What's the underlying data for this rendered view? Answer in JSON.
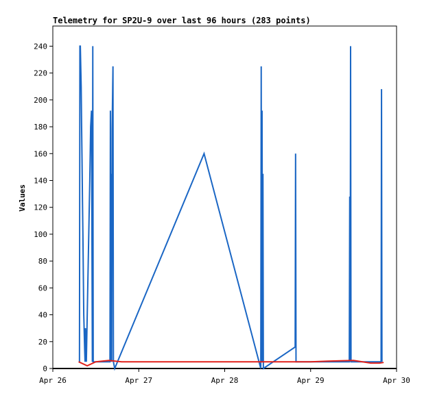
{
  "chart_data": {
    "type": "line",
    "title": "Telemetry for SP2U-9 over last 96 hours (283 points)",
    "y_label": "Values",
    "xlim": [
      26,
      30
    ],
    "xticks": [
      {
        "value": 26,
        "label": "Apr 26"
      },
      {
        "value": 27,
        "label": "Apr 27"
      },
      {
        "value": 28,
        "label": "Apr 28"
      },
      {
        "value": 29,
        "label": "Apr 29"
      },
      {
        "value": 30,
        "label": "Apr 30"
      }
    ],
    "ylim": [
      0,
      255
    ],
    "yticks": [
      0,
      20,
      40,
      60,
      80,
      100,
      120,
      140,
      160,
      180,
      200,
      220,
      240
    ],
    "series": [
      {
        "color": "#1a66c4",
        "x": [
          26.31,
          26.315,
          26.32,
          26.33,
          26.335,
          26.34,
          26.345,
          26.35,
          26.355,
          26.36,
          26.37,
          26.375,
          26.38,
          26.39,
          26.43,
          26.44,
          26.45,
          26.46,
          26.465,
          26.47,
          26.665,
          26.67,
          26.675,
          26.68,
          26.685,
          26.69,
          26.7,
          26.705,
          26.72,
          27.76,
          28.42,
          28.425,
          28.43,
          28.435,
          28.44,
          28.445,
          28.45,
          28.82,
          28.825,
          28.83,
          29.45,
          29.455,
          29.46,
          29.465,
          29.47,
          29.82,
          29.825,
          29.83
        ],
        "values": [
          5,
          240,
          240,
          210,
          180,
          155,
          125,
          100,
          70,
          40,
          15,
          5,
          30,
          5,
          140,
          180,
          192,
          5,
          240,
          5,
          5,
          192,
          5,
          145,
          5,
          178,
          225,
          5,
          0,
          160,
          0,
          225,
          5,
          192,
          5,
          145,
          0,
          16,
          160,
          5,
          5,
          128,
          5,
          240,
          5,
          5,
          208,
          5
        ]
      },
      {
        "color": "#e0201a",
        "x": [
          26.3,
          26.4,
          26.5,
          26.65,
          26.8,
          27.5,
          28.5,
          29.0,
          29.2,
          29.5,
          29.7,
          29.8,
          29.85
        ],
        "values": [
          5,
          2,
          5,
          6,
          5,
          5,
          5,
          5,
          5.5,
          6,
          4,
          4,
          4.5
        ]
      }
    ]
  }
}
